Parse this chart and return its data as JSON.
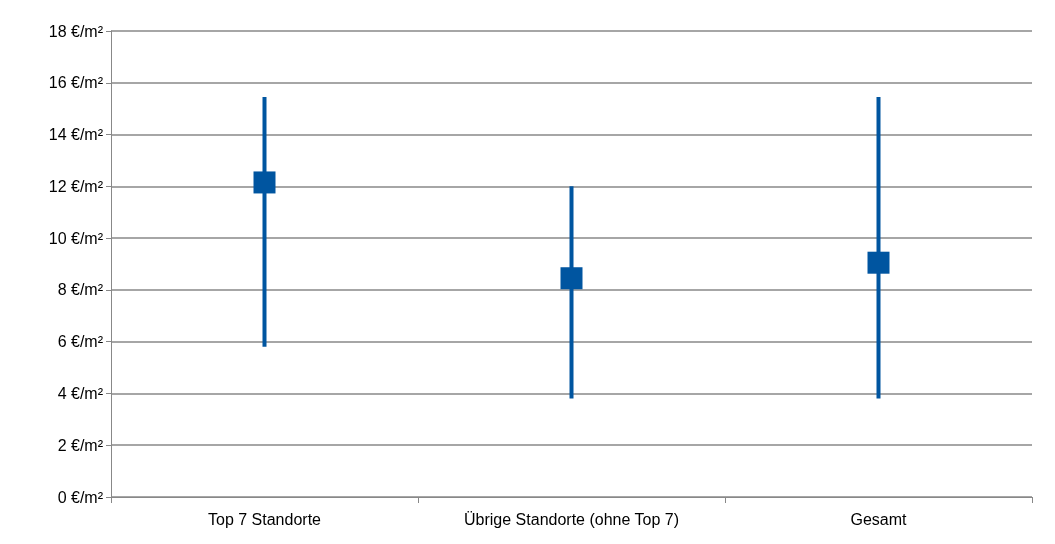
{
  "chart_data": {
    "type": "scatter",
    "categories": [
      "Top 7 Standorte",
      "Übrige Standorte (ohne Top 7)",
      "Gesamt"
    ],
    "series": [
      {
        "color": "#0055a0",
        "values": [
          12.15,
          8.45,
          9.05
        ],
        "errors": [
          [
            5.8,
            15.45
          ],
          [
            3.8,
            12.0
          ],
          [
            3.8,
            15.45
          ]
        ]
      }
    ],
    "ylim": [
      0,
      18
    ],
    "yticks": [
      {
        "value": 0,
        "label": "0 €/m²"
      },
      {
        "value": 2,
        "label": "2 €/m²"
      },
      {
        "value": 4,
        "label": "4 €/m²"
      },
      {
        "value": 6,
        "label": "6 €/m²"
      },
      {
        "value": 8,
        "label": "8 €/m²"
      },
      {
        "value": 10,
        "label": "10 €/m²"
      },
      {
        "value": 12,
        "label": "12 €/m²"
      },
      {
        "value": 14,
        "label": "14 €/m²"
      },
      {
        "value": 16,
        "label": "16 €/m²"
      },
      {
        "value": 18,
        "label": "18 €/m²"
      }
    ],
    "grid": "y",
    "marker": "square"
  }
}
